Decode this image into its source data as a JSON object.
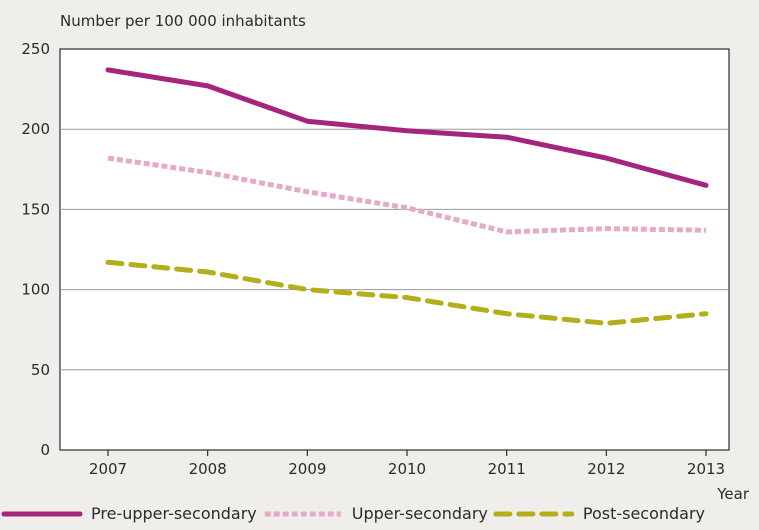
{
  "chart_data": {
    "type": "line",
    "ylabel": "Number per 100 000 inhabitants",
    "xlabel": "Year",
    "ylim": [
      0,
      250
    ],
    "yticks": [
      0,
      50,
      100,
      150,
      200,
      250
    ],
    "categories": [
      "2007",
      "2008",
      "2009",
      "2010",
      "2011",
      "2012",
      "2013"
    ],
    "grid": true,
    "legend_position": "bottom",
    "series": [
      {
        "name": "Pre-upper-secondary",
        "values": [
          237,
          227,
          205,
          199,
          195,
          182,
          165
        ],
        "color": "#a3257d",
        "style": "solid"
      },
      {
        "name": "Upper-secondary",
        "values": [
          182,
          173,
          161,
          151,
          136,
          138,
          137
        ],
        "color": "#e7a9c8",
        "style": "dotted"
      },
      {
        "name": "Post-secondary",
        "values": [
          117,
          111,
          100,
          95,
          85,
          79,
          85
        ],
        "color": "#b4ad1c",
        "style": "dashed"
      }
    ]
  }
}
